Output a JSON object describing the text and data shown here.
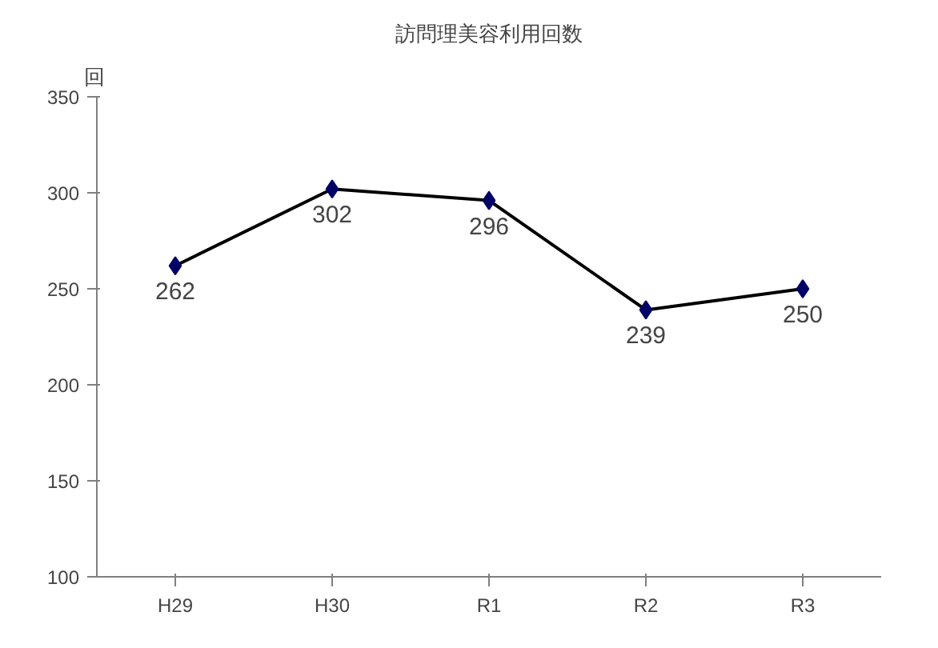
{
  "chart_data": {
    "type": "line",
    "title": "訪問理美容利用回数",
    "ylabel": "回",
    "categories": [
      "H29",
      "H30",
      "R1",
      "R2",
      "R3"
    ],
    "series": [
      {
        "color": "#000066",
        "values": [
          262,
          302,
          296,
          239,
          250
        ]
      }
    ],
    "ylim": [
      100,
      350
    ],
    "yticks": [
      100,
      150,
      200,
      250,
      300,
      350
    ],
    "marker": "diamond",
    "line_style": "solid",
    "data_labels": true
  }
}
